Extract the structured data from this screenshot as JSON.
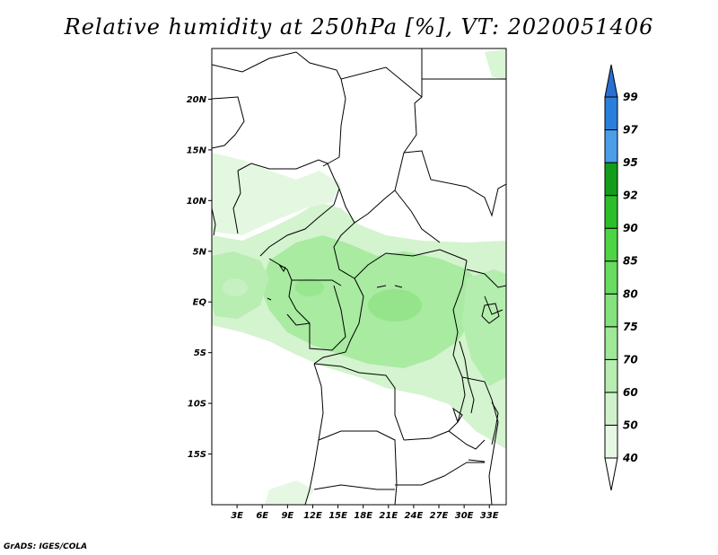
{
  "title": "Relative humidity at 250hPa [%], VT: 2020051406",
  "credit": "GrADS: IGES/COLA",
  "map": {
    "lat_ticks": [
      "20N",
      "15N",
      "10N",
      "5N",
      "EQ",
      "5S",
      "10S",
      "15S"
    ],
    "lat_values": [
      20,
      15,
      10,
      5,
      0,
      -5,
      -10,
      -15
    ],
    "lon_ticks": [
      "3E",
      "6E",
      "9E",
      "12E",
      "15E",
      "18E",
      "21E",
      "24E",
      "27E",
      "30E",
      "33E"
    ],
    "lon_values": [
      3,
      6,
      9,
      12,
      15,
      18,
      21,
      24,
      27,
      30,
      33
    ],
    "lon_range": [
      0,
      35
    ],
    "lat_range": [
      -20,
      25
    ]
  },
  "colorbar": {
    "levels": [
      "40",
      "50",
      "60",
      "70",
      "75",
      "80",
      "85",
      "90",
      "92",
      "95",
      "97",
      "99"
    ],
    "colors": [
      "#e6f8e4",
      "#d0f2cb",
      "#b7edb0",
      "#9ee897",
      "#84e27c",
      "#67dc5f",
      "#4dd444",
      "#2cbf2a",
      "#129e1a",
      "#4a9ee8",
      "#2b7fdc",
      "#1c5fc8",
      "#246fd0"
    ],
    "under_color": "#ffffff",
    "over_color": "#2a6fd2"
  }
}
